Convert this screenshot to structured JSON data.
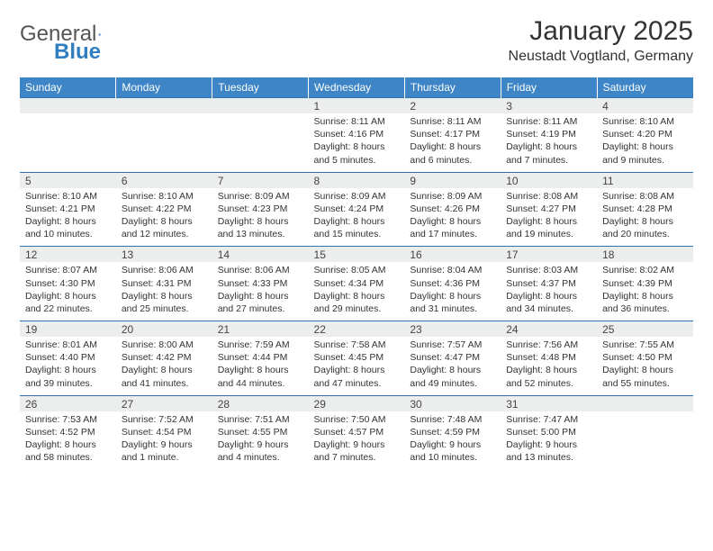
{
  "logo": {
    "text1": "General",
    "text2": "Blue",
    "icon_fill": "#2f7ec2"
  },
  "header": {
    "title": "January 2025",
    "location": "Neustadt Vogtland, Germany"
  },
  "colors": {
    "header_bg": "#3d85c6",
    "day_bg": "#eceded",
    "rule": "#3372b0",
    "text": "#333"
  },
  "weekdays": [
    "Sunday",
    "Monday",
    "Tuesday",
    "Wednesday",
    "Thursday",
    "Friday",
    "Saturday"
  ],
  "weeks": [
    {
      "nums": [
        "",
        "",
        "",
        "1",
        "2",
        "3",
        "4"
      ],
      "info": [
        "",
        "",
        "",
        "Sunrise: 8:11 AM\nSunset: 4:16 PM\nDaylight: 8 hours and 5 minutes.",
        "Sunrise: 8:11 AM\nSunset: 4:17 PM\nDaylight: 8 hours and 6 minutes.",
        "Sunrise: 8:11 AM\nSunset: 4:19 PM\nDaylight: 8 hours and 7 minutes.",
        "Sunrise: 8:10 AM\nSunset: 4:20 PM\nDaylight: 8 hours and 9 minutes."
      ]
    },
    {
      "nums": [
        "5",
        "6",
        "7",
        "8",
        "9",
        "10",
        "11"
      ],
      "info": [
        "Sunrise: 8:10 AM\nSunset: 4:21 PM\nDaylight: 8 hours and 10 minutes.",
        "Sunrise: 8:10 AM\nSunset: 4:22 PM\nDaylight: 8 hours and 12 minutes.",
        "Sunrise: 8:09 AM\nSunset: 4:23 PM\nDaylight: 8 hours and 13 minutes.",
        "Sunrise: 8:09 AM\nSunset: 4:24 PM\nDaylight: 8 hours and 15 minutes.",
        "Sunrise: 8:09 AM\nSunset: 4:26 PM\nDaylight: 8 hours and 17 minutes.",
        "Sunrise: 8:08 AM\nSunset: 4:27 PM\nDaylight: 8 hours and 19 minutes.",
        "Sunrise: 8:08 AM\nSunset: 4:28 PM\nDaylight: 8 hours and 20 minutes."
      ]
    },
    {
      "nums": [
        "12",
        "13",
        "14",
        "15",
        "16",
        "17",
        "18"
      ],
      "info": [
        "Sunrise: 8:07 AM\nSunset: 4:30 PM\nDaylight: 8 hours and 22 minutes.",
        "Sunrise: 8:06 AM\nSunset: 4:31 PM\nDaylight: 8 hours and 25 minutes.",
        "Sunrise: 8:06 AM\nSunset: 4:33 PM\nDaylight: 8 hours and 27 minutes.",
        "Sunrise: 8:05 AM\nSunset: 4:34 PM\nDaylight: 8 hours and 29 minutes.",
        "Sunrise: 8:04 AM\nSunset: 4:36 PM\nDaylight: 8 hours and 31 minutes.",
        "Sunrise: 8:03 AM\nSunset: 4:37 PM\nDaylight: 8 hours and 34 minutes.",
        "Sunrise: 8:02 AM\nSunset: 4:39 PM\nDaylight: 8 hours and 36 minutes."
      ]
    },
    {
      "nums": [
        "19",
        "20",
        "21",
        "22",
        "23",
        "24",
        "25"
      ],
      "info": [
        "Sunrise: 8:01 AM\nSunset: 4:40 PM\nDaylight: 8 hours and 39 minutes.",
        "Sunrise: 8:00 AM\nSunset: 4:42 PM\nDaylight: 8 hours and 41 minutes.",
        "Sunrise: 7:59 AM\nSunset: 4:44 PM\nDaylight: 8 hours and 44 minutes.",
        "Sunrise: 7:58 AM\nSunset: 4:45 PM\nDaylight: 8 hours and 47 minutes.",
        "Sunrise: 7:57 AM\nSunset: 4:47 PM\nDaylight: 8 hours and 49 minutes.",
        "Sunrise: 7:56 AM\nSunset: 4:48 PM\nDaylight: 8 hours and 52 minutes.",
        "Sunrise: 7:55 AM\nSunset: 4:50 PM\nDaylight: 8 hours and 55 minutes."
      ]
    },
    {
      "nums": [
        "26",
        "27",
        "28",
        "29",
        "30",
        "31",
        ""
      ],
      "info": [
        "Sunrise: 7:53 AM\nSunset: 4:52 PM\nDaylight: 8 hours and 58 minutes.",
        "Sunrise: 7:52 AM\nSunset: 4:54 PM\nDaylight: 9 hours and 1 minute.",
        "Sunrise: 7:51 AM\nSunset: 4:55 PM\nDaylight: 9 hours and 4 minutes.",
        "Sunrise: 7:50 AM\nSunset: 4:57 PM\nDaylight: 9 hours and 7 minutes.",
        "Sunrise: 7:48 AM\nSunset: 4:59 PM\nDaylight: 9 hours and 10 minutes.",
        "Sunrise: 7:47 AM\nSunset: 5:00 PM\nDaylight: 9 hours and 13 minutes.",
        ""
      ]
    }
  ]
}
